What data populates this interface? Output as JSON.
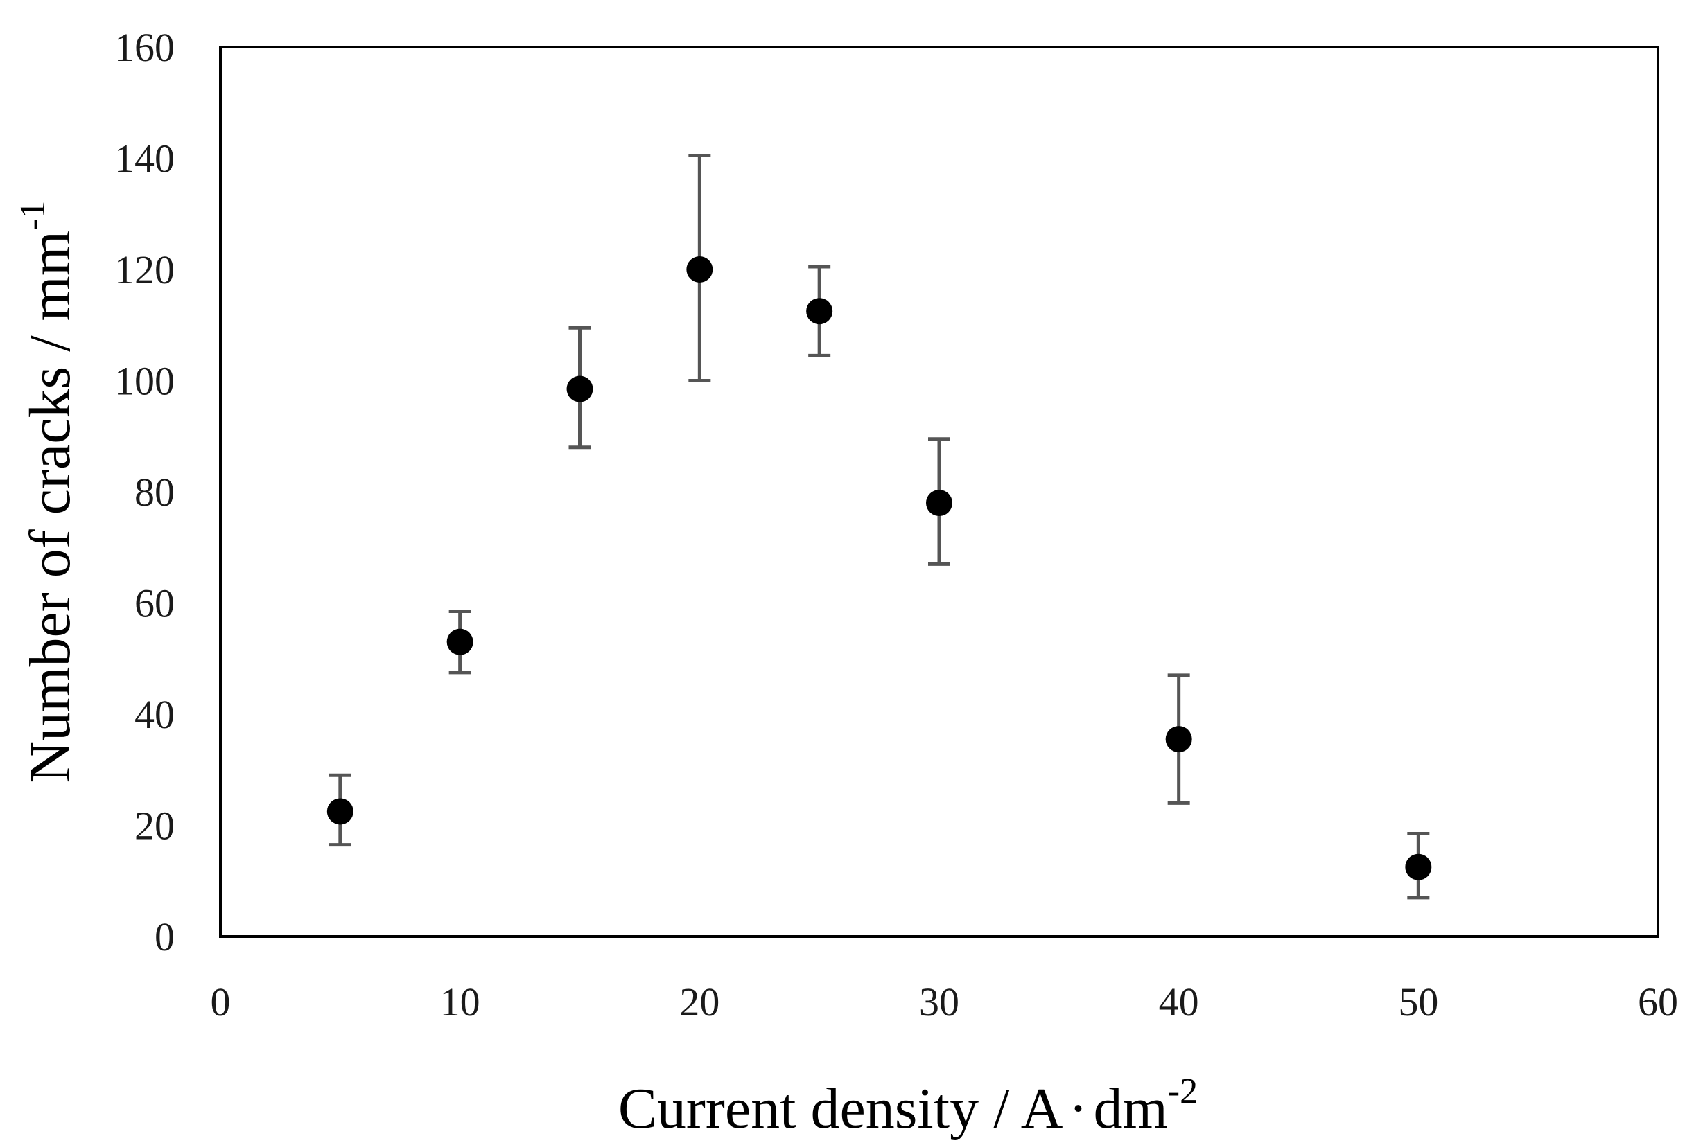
{
  "chart_data": {
    "type": "scatter",
    "xlabel": {
      "text": "Current density / A",
      "dot": "·",
      "unit": "dm",
      "superscript": "-2"
    },
    "ylabel": {
      "text": "Number of cracks / mm",
      "superscript": "-1"
    },
    "xlim": [
      0,
      60
    ],
    "ylim": [
      0,
      160
    ],
    "xticks": [
      0,
      10,
      20,
      30,
      40,
      50,
      60
    ],
    "yticks": [
      0,
      20,
      40,
      60,
      80,
      100,
      120,
      140,
      160
    ],
    "grid": false,
    "legend": false,
    "marker_color": "#000000",
    "errorbar_color": "#555555",
    "points": [
      {
        "x": 5,
        "y": 22.5,
        "yerr_low": 16.5,
        "yerr_high": 29
      },
      {
        "x": 10,
        "y": 53,
        "yerr_low": 47.5,
        "yerr_high": 58.5
      },
      {
        "x": 15,
        "y": 98.5,
        "yerr_low": 88,
        "yerr_high": 109.5
      },
      {
        "x": 20,
        "y": 120,
        "yerr_low": 100,
        "yerr_high": 140.5
      },
      {
        "x": 25,
        "y": 112.5,
        "yerr_low": 104.5,
        "yerr_high": 120.5
      },
      {
        "x": 30,
        "y": 78,
        "yerr_low": 67,
        "yerr_high": 89.5
      },
      {
        "x": 40,
        "y": 35.5,
        "yerr_low": 24,
        "yerr_high": 47
      },
      {
        "x": 50,
        "y": 12.5,
        "yerr_low": 7,
        "yerr_high": 18.5
      }
    ]
  }
}
